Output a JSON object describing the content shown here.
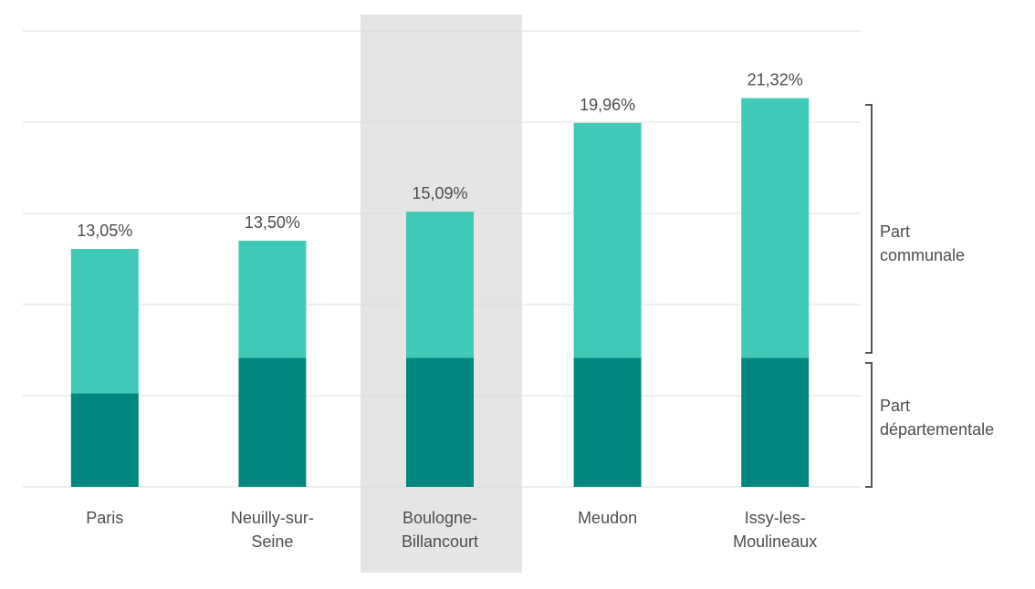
{
  "chart_data": {
    "type": "bar",
    "stacked": true,
    "categories": [
      "Paris",
      "Neuilly-sur-Seine",
      "Boulogne-Billancourt",
      "Meudon",
      "Issy-les-Moulineaux"
    ],
    "category_lines": [
      [
        "Paris"
      ],
      [
        "Neuilly-sur-",
        "Seine"
      ],
      [
        "Boulogne-",
        "Billancourt"
      ],
      [
        "Meudon"
      ],
      [
        "Issy-les-",
        "Moulineaux"
      ]
    ],
    "series": [
      {
        "name": "Part départementale",
        "values": [
          5.13,
          7.08,
          7.08,
          7.08,
          7.08
        ]
      },
      {
        "name": "Part communale",
        "values": [
          7.92,
          6.42,
          8.01,
          12.88,
          14.24
        ]
      }
    ],
    "totals": [
      13.05,
      13.5,
      15.09,
      19.96,
      21.32
    ],
    "data_labels": [
      "13,05%",
      "13,50%",
      "15,09%",
      "19,96%",
      "21,32%"
    ],
    "highlighted_category": "Boulogne-Billancourt",
    "ylim": [
      0,
      25
    ],
    "grid": true,
    "colors": {
      "departementale": "#028780",
      "communale": "#41c9b8",
      "highlight": "#e6e4e5"
    }
  },
  "annotations": {
    "communale": [
      "Part",
      "communale"
    ],
    "departementale": [
      "Part",
      "départementale"
    ]
  }
}
